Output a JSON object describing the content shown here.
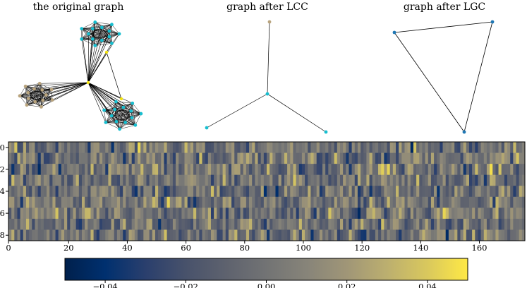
{
  "titles": {
    "original": "the original graph",
    "lcc": "graph after LCC",
    "lgc": "graph after LGC"
  },
  "colors": {
    "cyan": "#17becf",
    "tan": "#b9a47e",
    "yellow": "#f2e20c",
    "blue": "#1f77b4",
    "edge": "#000000"
  },
  "chart_data": [
    {
      "type": "network",
      "title": "the original graph",
      "clusters": [
        {
          "name": "cluster-top",
          "node_count": 14,
          "node_color": "cyan",
          "fully_connected": true
        },
        {
          "name": "cluster-left",
          "node_count": 14,
          "node_color": "tan",
          "fully_connected": true
        },
        {
          "name": "cluster-bottom-right",
          "node_count": 14,
          "node_color": "cyan",
          "fully_connected": true
        }
      ],
      "hub_nodes": 3,
      "hub_color": "yellow"
    },
    {
      "type": "network",
      "title": "graph after LCC",
      "nodes": [
        {
          "id": "top",
          "color": "tan"
        },
        {
          "id": "center",
          "color": "cyan"
        },
        {
          "id": "left",
          "color": "cyan"
        },
        {
          "id": "right",
          "color": "cyan"
        }
      ],
      "edges": [
        [
          "top",
          "center"
        ],
        [
          "center",
          "left"
        ],
        [
          "center",
          "right"
        ]
      ]
    },
    {
      "type": "network",
      "title": "graph after LGC",
      "nodes": [
        {
          "id": "a",
          "color": "blue"
        },
        {
          "id": "b",
          "color": "blue"
        },
        {
          "id": "c",
          "color": "blue"
        }
      ],
      "edges": [
        [
          "a",
          "b"
        ],
        [
          "b",
          "c"
        ],
        [
          "c",
          "a"
        ]
      ]
    },
    {
      "type": "heatmap",
      "rows": 9,
      "columns": 176,
      "xticks": [
        "0",
        "20",
        "40",
        "60",
        "80",
        "100",
        "120",
        "140",
        "160"
      ],
      "yticks": [
        "0",
        "2",
        "4",
        "6",
        "8"
      ],
      "value_range": [
        -0.05,
        0.05
      ],
      "colormap": "cividis",
      "seed": 20240611
    },
    {
      "type": "colorbar",
      "orientation": "horizontal",
      "range": [
        -0.05,
        0.05
      ],
      "ticks": [
        "−0.04",
        "−0.02",
        "0.00",
        "0.02",
        "0.04"
      ]
    }
  ]
}
